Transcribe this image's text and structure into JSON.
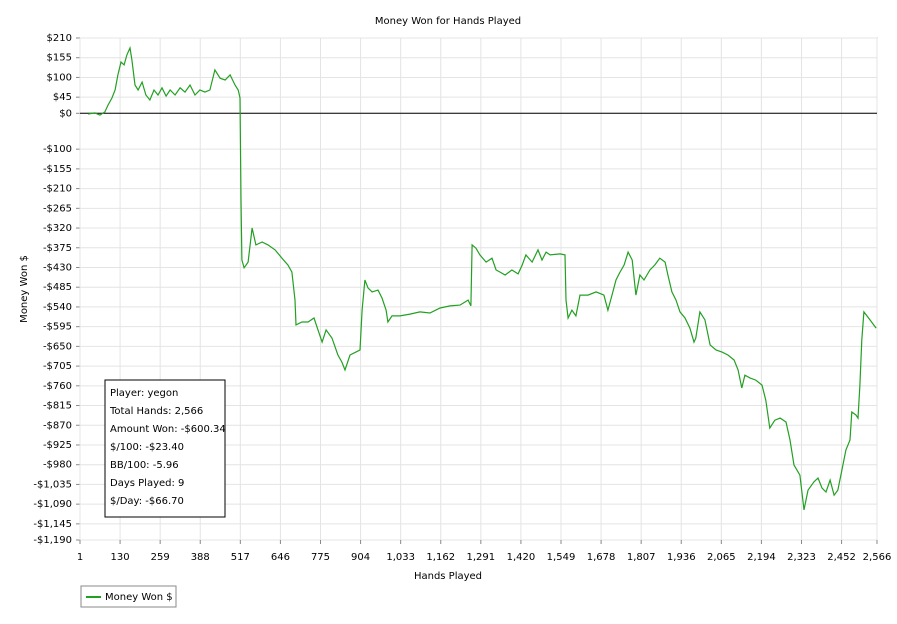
{
  "chart_data": {
    "type": "line",
    "title": "Money Won for Hands Played",
    "xlabel": "Hands Played",
    "ylabel": "Money Won $",
    "xlim": [
      1,
      2566
    ],
    "ylim": [
      -1190,
      210
    ],
    "xticks": [
      1,
      130,
      259,
      388,
      517,
      646,
      775,
      904,
      {
        "value": 1033,
        "label": "1,033"
      },
      {
        "value": 1162,
        "label": "1,162"
      },
      {
        "value": 1291,
        "label": "1,291"
      },
      {
        "value": 1420,
        "label": "1,420"
      },
      {
        "value": 1549,
        "label": "1,549"
      },
      {
        "value": 1678,
        "label": "1,678"
      },
      {
        "value": 1807,
        "label": "1,807"
      },
      {
        "value": 1936,
        "label": "1,936"
      },
      {
        "value": 2065,
        "label": "2,065"
      },
      {
        "value": 2194,
        "label": "2,194"
      },
      {
        "value": 2323,
        "label": "2,323"
      },
      {
        "value": 2452,
        "label": "2,452"
      },
      {
        "value": 2566,
        "label": "2,566"
      }
    ],
    "yticks": [
      {
        "value": 210,
        "label": "$210"
      },
      {
        "value": 155,
        "label": "$155"
      },
      {
        "value": 100,
        "label": "$100"
      },
      {
        "value": 45,
        "label": "$45"
      },
      {
        "value": 0,
        "label": "$0"
      },
      {
        "value": -100,
        "label": "-$100"
      },
      {
        "value": -155,
        "label": "-$155"
      },
      {
        "value": -210,
        "label": "-$210"
      },
      {
        "value": -265,
        "label": "-$265"
      },
      {
        "value": -320,
        "label": "-$320"
      },
      {
        "value": -375,
        "label": "-$375"
      },
      {
        "value": -430,
        "label": "-$430"
      },
      {
        "value": -485,
        "label": "-$485"
      },
      {
        "value": -540,
        "label": "-$540"
      },
      {
        "value": -595,
        "label": "-$595"
      },
      {
        "value": -650,
        "label": "-$650"
      },
      {
        "value": -705,
        "label": "-$705"
      },
      {
        "value": -760,
        "label": "-$760"
      },
      {
        "value": -815,
        "label": "-$815"
      },
      {
        "value": -870,
        "label": "-$870"
      },
      {
        "value": -925,
        "label": "-$925"
      },
      {
        "value": -980,
        "label": "-$980"
      },
      {
        "value": -1035,
        "label": "-$1,035"
      },
      {
        "value": -1090,
        "label": "-$1,090"
      },
      {
        "value": -1145,
        "label": "-$1,145"
      },
      {
        "value": -1190,
        "label": "-$1,190"
      }
    ],
    "grid": true,
    "zero_line": true,
    "legend": "bottom-left",
    "info_box": [
      "Player: yegon",
      "Total Hands: 2,566",
      "Amount Won: -$600.34",
      "$/100: -$23.40",
      "BB/100: -5.96",
      "Days Played: 9",
      "$/Day: -$66.70"
    ],
    "x": [
      27,
      49,
      65,
      81,
      91,
      104,
      114,
      123,
      133,
      143,
      152,
      162,
      168,
      178,
      188,
      201,
      213,
      226,
      239,
      252,
      265,
      278,
      291,
      307,
      323,
      339,
      355,
      371,
      387,
      403,
      419,
      435,
      452,
      468,
      484,
      500,
      510,
      516,
      519,
      522,
      529,
      542,
      555,
      567,
      587,
      606,
      629,
      651,
      670,
      683,
      693,
      696,
      715,
      735,
      754,
      767,
      780,
      793,
      812,
      831,
      844,
      854,
      870,
      889,
      902,
      909,
      918,
      928,
      941,
      960,
      973,
      986,
      992,
      1005,
      1031,
      1063,
      1095,
      1127,
      1160,
      1192,
      1224,
      1250,
      1259,
      1263,
      1275,
      1288,
      1308,
      1327,
      1340,
      1353,
      1369,
      1391,
      1411,
      1424,
      1436,
      1456,
      1475,
      1488,
      1501,
      1514,
      1546,
      1562,
      1565,
      1572,
      1584,
      1597,
      1610,
      1636,
      1662,
      1687,
      1700,
      1713,
      1726,
      1739,
      1752,
      1765,
      1778,
      1790,
      1803,
      1816,
      1835,
      1851,
      1867,
      1884,
      1893,
      1906,
      1919,
      1932,
      1948,
      1964,
      1977,
      1983,
      1996,
      2012,
      2029,
      2048,
      2067,
      2086,
      2106,
      2119,
      2131,
      2141,
      2157,
      2176,
      2196,
      2208,
      2221,
      2237,
      2254,
      2273,
      2286,
      2299,
      2318,
      2331,
      2344,
      2363,
      2376,
      2389,
      2402,
      2415,
      2428,
      2440,
      2453,
      2466,
      2479,
      2485,
      2498,
      2505,
      2511,
      2517,
      2524,
      2543,
      2563
    ],
    "series": [
      {
        "name": "Money Won $",
        "color": "#22a022",
        "values": [
          -2,
          1,
          -5,
          4,
          23,
          43,
          65,
          107,
          143,
          135,
          163,
          182,
          149,
          79,
          65,
          87,
          51,
          37,
          65,
          51,
          71,
          48,
          65,
          51,
          71,
          59,
          79,
          51,
          65,
          59,
          65,
          121,
          98,
          93,
          107,
          79,
          65,
          43,
          -242,
          -409,
          -431,
          -415,
          -320,
          -367,
          -359,
          -367,
          -381,
          -404,
          -423,
          -443,
          -521,
          -590,
          -582,
          -582,
          -571,
          -604,
          -638,
          -604,
          -627,
          -674,
          -694,
          -716,
          -674,
          -666,
          -660,
          -549,
          -465,
          -487,
          -498,
          -493,
          -515,
          -549,
          -582,
          -565,
          -565,
          -560,
          -554,
          -557,
          -543,
          -537,
          -535,
          -521,
          -537,
          -367,
          -376,
          -395,
          -415,
          -404,
          -437,
          -443,
          -451,
          -437,
          -448,
          -423,
          -395,
          -415,
          -381,
          -409,
          -387,
          -395,
          -392,
          -395,
          -521,
          -571,
          -549,
          -565,
          -507,
          -507,
          -498,
          -507,
          -549,
          -507,
          -465,
          -443,
          -423,
          -387,
          -409,
          -507,
          -451,
          -465,
          -437,
          -423,
          -404,
          -415,
          -451,
          -498,
          -521,
          -554,
          -571,
          -599,
          -638,
          -627,
          -554,
          -576,
          -646,
          -660,
          -666,
          -674,
          -688,
          -716,
          -766,
          -730,
          -738,
          -744,
          -758,
          -800,
          -878,
          -856,
          -850,
          -861,
          -911,
          -981,
          -1009,
          -1106,
          -1051,
          -1028,
          -1017,
          -1045,
          -1056,
          -1023,
          -1065,
          -1051,
          -995,
          -939,
          -911,
          -833,
          -841,
          -850,
          -758,
          -632,
          -554,
          -576,
          -599
        ]
      }
    ]
  }
}
